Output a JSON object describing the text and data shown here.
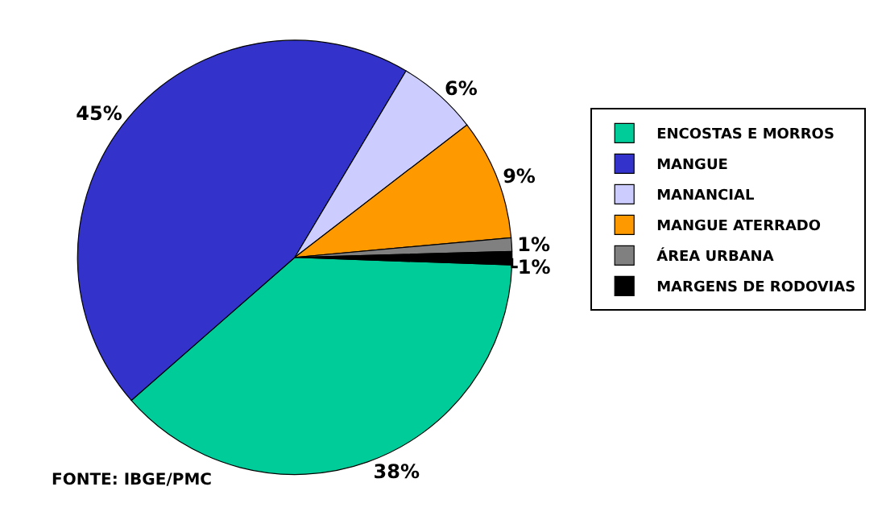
{
  "chart_data": {
    "type": "pie",
    "categories": [
      "ENCOSTAS E MORROS",
      "MANGUE",
      "MANANCIAL",
      "MANGUE ATERRADO",
      "ÁREA URBANA",
      "MARGENS DE RODOVIAS"
    ],
    "values": [
      38,
      45,
      6,
      9,
      1,
      1
    ],
    "colors": [
      "#00cc99",
      "#3333cc",
      "#ccccff",
      "#ff9900",
      "#808080",
      "#000000"
    ],
    "value_labels": [
      "38%",
      "45%",
      "6%",
      "9%",
      "1%",
      "1%"
    ],
    "legend": "right",
    "annotations": [
      "FONTE: IBGE/PMC"
    ]
  }
}
